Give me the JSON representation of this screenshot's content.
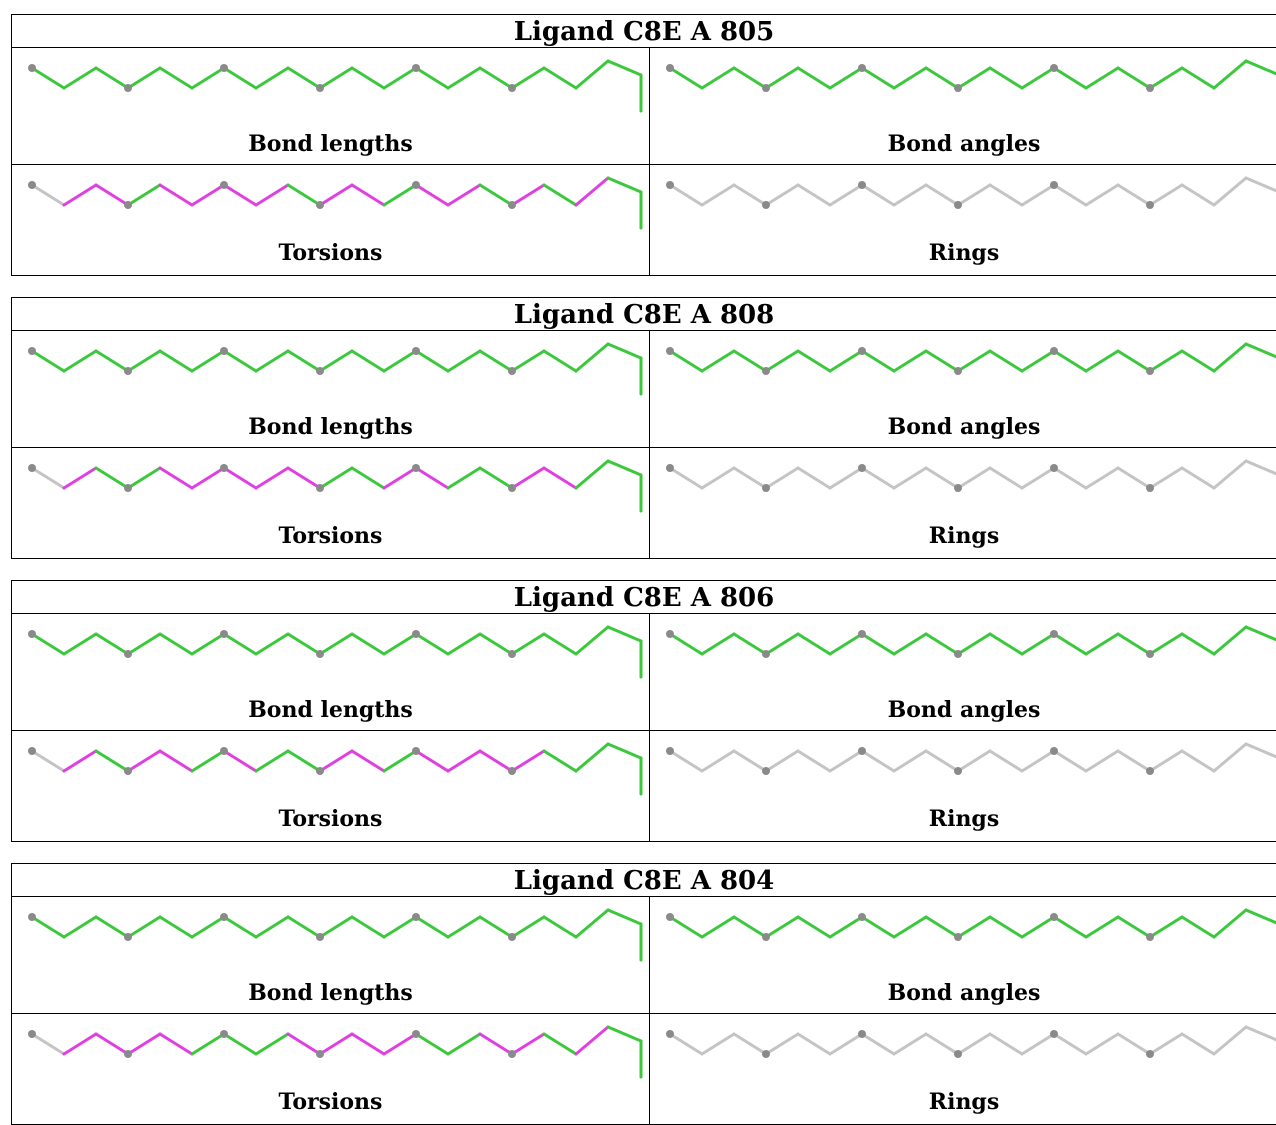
{
  "colors": {
    "ok": "#3cc83c",
    "outlier": "#e040e0",
    "neutral": "#c4c4c4",
    "atom": "#8a8a8a"
  },
  "bond_count": 19,
  "atom_markers": [
    0,
    3,
    6,
    9,
    12,
    15
  ],
  "ligands": [
    {
      "title": "Ligand C8E A 805",
      "panels": [
        {
          "label": "Bond lengths",
          "bonds": "GGGGGGGGGGGGGGGGGGG"
        },
        {
          "label": "Bond angles",
          "bonds": "GGGGGGGGGGGGGGGGGGG"
        },
        {
          "label": "Torsions",
          "bonds": "NMMGMMMMGMMGMMGMGMG"
        },
        {
          "label": "Rings",
          "bonds": "NNNNNNNNNNNNNNNNNNN"
        }
      ]
    },
    {
      "title": "Ligand C8E A 808",
      "panels": [
        {
          "label": "Bond lengths",
          "bonds": "GGGGGGGGGGGGGGGGGGG"
        },
        {
          "label": "Bond angles",
          "bonds": "GGGGGGGGGGGGGGGGGGG"
        },
        {
          "label": "Torsions",
          "bonds": "NMGGMMMMMGGMMGGMMGG"
        },
        {
          "label": "Rings",
          "bonds": "NNNNNNNNNNNNNNNNNNN"
        }
      ]
    },
    {
      "title": "Ligand C8E A 806",
      "panels": [
        {
          "label": "Bond lengths",
          "bonds": "GGGGGGGGGGGGGGGGGGG"
        },
        {
          "label": "Bond angles",
          "bonds": "GGGGGGGGGGGGGGGGGGG"
        },
        {
          "label": "Torsions",
          "bonds": "NMGMMGMGGMMGMMMMGGG"
        },
        {
          "label": "Rings",
          "bonds": "NNNNNNNNNNNNNNNNNNN"
        }
      ]
    },
    {
      "title": "Ligand C8E A 804",
      "panels": [
        {
          "label": "Bond lengths",
          "bonds": "GGGGGGGGGGGGGGGGGGG"
        },
        {
          "label": "Bond angles",
          "bonds": "GGGGGGGGGGGGGGGGGGG"
        },
        {
          "label": "Torsions",
          "bonds": "NMMMMGGGMMMMGGMMGMG"
        },
        {
          "label": "Rings",
          "bonds": "NNNNNNNNNNNNNNNNNNN"
        }
      ]
    }
  ]
}
